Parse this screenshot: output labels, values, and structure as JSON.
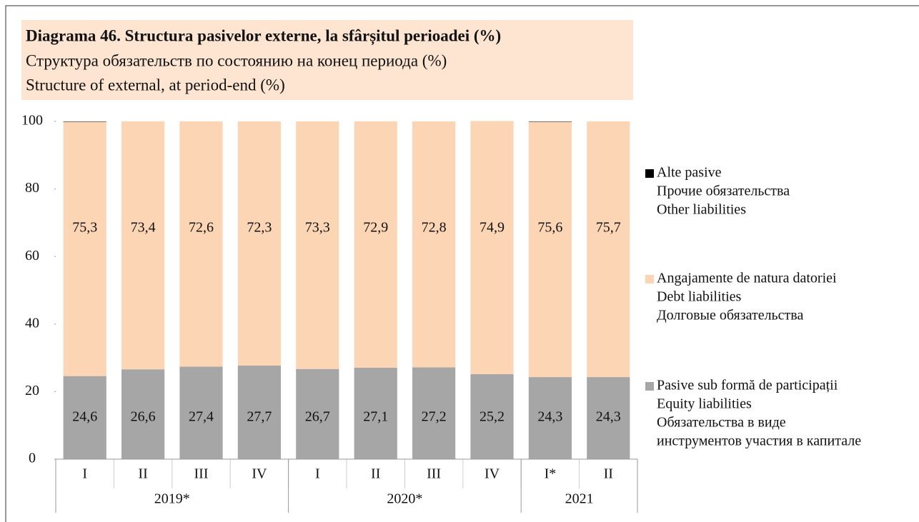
{
  "chart_data": {
    "type": "stacked_bar",
    "title": "Diagrama 46. Structura pasivelor externe, la sfârșitul perioadei (%)",
    "subtitles": [
      "Структура обязательств по состоянию на конец периода (%)",
      "Structure of external, at period-end (%)"
    ],
    "categories": [
      "I",
      "II",
      "III",
      "IV",
      "I",
      "II",
      "III",
      "IV",
      "I*",
      "II"
    ],
    "groups": [
      {
        "label": "2019*",
        "span": 4
      },
      {
        "label": "2020*",
        "span": 4
      },
      {
        "label": "2021",
        "span": 2
      }
    ],
    "series": [
      {
        "name": "Pasive sub formă de participații",
        "translations": [
          "Equity liabilities",
          "Обязательства в виде",
          "инструментов участия в капитале"
        ],
        "color": "#a6a6a6",
        "values": [
          24.6,
          26.6,
          27.4,
          27.7,
          26.7,
          27.1,
          27.2,
          25.2,
          24.3,
          24.3
        ],
        "value_labels": [
          "24,6",
          "26,6",
          "27,4",
          "27,7",
          "26,7",
          "27,1",
          "27,2",
          "25,2",
          "24,3",
          "24,3"
        ]
      },
      {
        "name": "Angajamente de natura datoriei",
        "translations": [
          "Debt liabilities",
          "Долговые обязательства"
        ],
        "color": "#fcd5b5",
        "values": [
          75.3,
          73.4,
          72.6,
          72.3,
          73.3,
          72.9,
          72.8,
          74.9,
          75.6,
          75.7
        ],
        "value_labels": [
          "75,3",
          "73,4",
          "72,6",
          "72,3",
          "73,3",
          "72,9",
          "72,8",
          "74,9",
          "75,6",
          "75,7"
        ]
      },
      {
        "name": "Alte pasive",
        "translations": [
          "Прочие обязательства",
          "Other liabilities"
        ],
        "color": "#000000",
        "values": [
          0.1,
          0,
          0,
          0,
          0,
          0,
          0,
          0,
          0.1,
          0
        ]
      }
    ],
    "ylim": [
      0,
      100
    ],
    "yticks": [
      0,
      20,
      40,
      60,
      80,
      100
    ]
  }
}
